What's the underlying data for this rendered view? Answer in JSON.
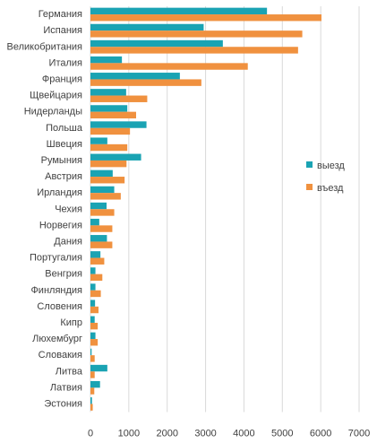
{
  "chart_data": {
    "type": "bar",
    "orientation": "horizontal",
    "categories": [
      "Германия",
      "Испания",
      "Великобритания",
      "Италия",
      "Франция",
      "Щвейцария",
      "Нидерланды",
      "Польша",
      "Швеция",
      "Румыния",
      "Австрия",
      "Ирландия",
      "Чехия",
      "Норвегия",
      "Дания",
      "Португалия",
      "Венгрия",
      "Финляндия",
      "Словения",
      "Кипр",
      "Люхембург",
      "Словакия",
      "Литва",
      "Латвия",
      "Эстония"
    ],
    "series": [
      {
        "name": "выезд",
        "color": "#1aa3b3",
        "values": [
          4600,
          2950,
          3450,
          820,
          2330,
          930,
          960,
          1460,
          440,
          1320,
          580,
          620,
          420,
          230,
          430,
          260,
          130,
          130,
          120,
          110,
          130,
          30,
          440,
          250,
          40
        ]
      },
      {
        "name": "въезд",
        "color": "#f0913f",
        "values": [
          6020,
          5520,
          5410,
          4100,
          2890,
          1480,
          1190,
          1030,
          960,
          940,
          890,
          790,
          620,
          570,
          570,
          360,
          310,
          270,
          210,
          190,
          190,
          110,
          110,
          100,
          60
        ]
      }
    ],
    "xlim": [
      0,
      7000
    ],
    "xticks": [
      "0",
      "1000",
      "2000",
      "3000",
      "4000",
      "5000",
      "6000",
      "7000"
    ],
    "grid": true,
    "legend_position": "right"
  }
}
